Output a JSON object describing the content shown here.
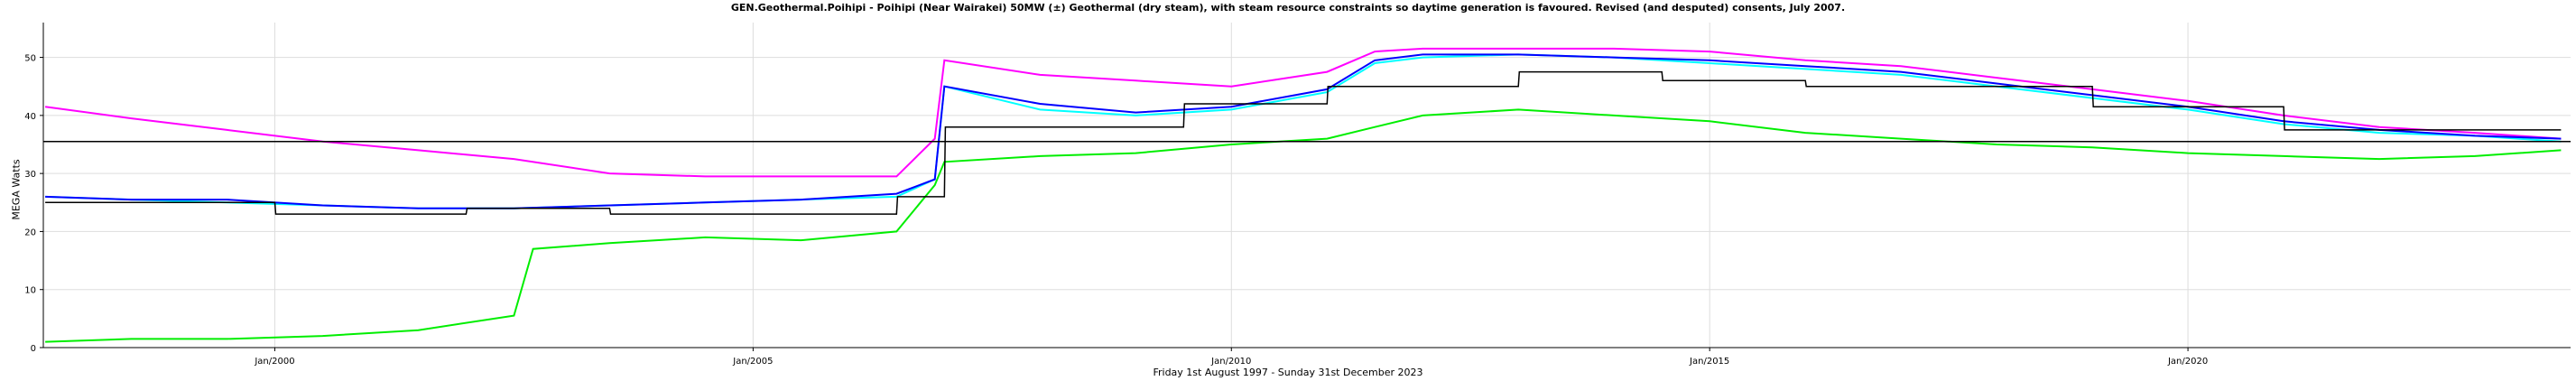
{
  "chart_data": {
    "type": "line",
    "title": "GEN.Geothermal.Poihipi - Poihipi (Near Wairakei) 50MW (±) Geothermal (dry steam), with steam resource constraints so daytime generation is favoured. Revised (and desputed) consents, July 2007.",
    "subtitle": "Friday 1st August 1997  -  Sunday 31st December 2023",
    "ylabel": "MEGA Watts",
    "xlabel": "",
    "xlim": [
      1997.58,
      2024.0
    ],
    "ylim": [
      0,
      56
    ],
    "yticks": [
      0,
      10,
      20,
      30,
      40,
      50
    ],
    "xticks": [
      {
        "value": 2000.0,
        "label": "Jan/2000"
      },
      {
        "value": 2005.0,
        "label": "Jan/2005"
      },
      {
        "value": 2010.0,
        "label": "Jan/2010"
      },
      {
        "value": 2015.0,
        "label": "Jan/2015"
      },
      {
        "value": 2020.0,
        "label": "Jan/2020"
      }
    ],
    "grid": true,
    "horizontal_reference": 35.5,
    "series": [
      {
        "color": "#ff00ff",
        "role": "max",
        "x": [
          1997.6,
          1998.5,
          1999.5,
          2000.5,
          2001.5,
          2002.5,
          2003.5,
          2004.5,
          2005.5,
          2006.5,
          2006.9,
          2007.0,
          2008.0,
          2009.0,
          2010.0,
          2011.0,
          2011.5,
          2012.0,
          2013.0,
          2014.0,
          2015.0,
          2016.0,
          2017.0,
          2018.0,
          2019.0,
          2020.0,
          2021.0,
          2022.0,
          2023.0,
          2023.9
        ],
        "values": [
          41.5,
          39.5,
          37.5,
          35.5,
          34.0,
          32.5,
          30.0,
          29.5,
          29.5,
          29.5,
          36.0,
          49.5,
          47.0,
          46.0,
          45.0,
          47.5,
          51.0,
          51.5,
          51.5,
          51.5,
          51.0,
          49.5,
          48.5,
          46.5,
          44.5,
          42.5,
          40.0,
          38.0,
          37.0,
          36.0
        ]
      },
      {
        "color": "#00ffff",
        "role": "mean-daily",
        "x": [
          1997.6,
          1998.5,
          1999.5,
          2000.5,
          2001.5,
          2002.5,
          2003.5,
          2004.5,
          2005.5,
          2006.5,
          2006.9,
          2007.0,
          2008.0,
          2009.0,
          2010.0,
          2011.0,
          2011.5,
          2012.0,
          2013.0,
          2014.0,
          2015.0,
          2016.0,
          2017.0,
          2018.0,
          2019.0,
          2020.0,
          2021.0,
          2022.0,
          2023.0,
          2023.9
        ],
        "values": [
          26.0,
          25.5,
          25.0,
          24.5,
          24.0,
          24.0,
          24.5,
          25.0,
          25.5,
          26.0,
          29.0,
          45.0,
          41.0,
          40.0,
          41.0,
          44.0,
          49.0,
          50.0,
          50.5,
          50.0,
          49.0,
          48.0,
          47.0,
          45.0,
          43.0,
          41.0,
          38.5,
          37.0,
          36.5,
          35.5
        ]
      },
      {
        "color": "#0000ff",
        "role": "mean",
        "x": [
          1997.6,
          1998.5,
          1999.5,
          2000.5,
          2001.5,
          2002.5,
          2003.5,
          2004.5,
          2005.5,
          2006.5,
          2006.9,
          2007.0,
          2008.0,
          2009.0,
          2010.0,
          2011.0,
          2011.5,
          2012.0,
          2013.0,
          2014.0,
          2015.0,
          2016.0,
          2017.0,
          2018.0,
          2019.0,
          2020.0,
          2021.0,
          2022.0,
          2023.0,
          2023.9
        ],
        "values": [
          26.0,
          25.5,
          25.5,
          24.5,
          24.0,
          24.0,
          24.5,
          25.0,
          25.5,
          26.5,
          29.0,
          45.0,
          42.0,
          40.5,
          41.5,
          44.5,
          49.5,
          50.5,
          50.5,
          50.0,
          49.5,
          48.5,
          47.5,
          45.5,
          43.5,
          41.5,
          39.0,
          37.5,
          36.5,
          36.0
        ]
      },
      {
        "color": "#00ee00",
        "role": "min",
        "x": [
          1997.6,
          1998.5,
          1999.5,
          2000.5,
          2001.5,
          2002.5,
          2002.7,
          2003.5,
          2004.5,
          2005.5,
          2006.5,
          2006.9,
          2007.0,
          2008.0,
          2009.0,
          2010.0,
          2011.0,
          2011.5,
          2012.0,
          2013.0,
          2014.0,
          2015.0,
          2016.0,
          2017.0,
          2018.0,
          2019.0,
          2020.0,
          2021.0,
          2022.0,
          2023.0,
          2023.9
        ],
        "values": [
          1.0,
          1.5,
          1.5,
          2.0,
          3.0,
          5.5,
          17.0,
          18.0,
          19.0,
          18.5,
          20.0,
          28.0,
          32.0,
          33.0,
          33.5,
          35.0,
          36.0,
          38.0,
          40.0,
          41.0,
          40.0,
          39.0,
          37.0,
          36.0,
          35.0,
          34.5,
          33.5,
          33.0,
          32.5,
          33.0,
          34.0
        ]
      },
      {
        "color": "#000000",
        "role": "monthly-average",
        "x": [
          1997.6,
          2000.0,
          2000.01,
          2002.0,
          2002.01,
          2003.5,
          2003.51,
          2006.5,
          2006.51,
          2007.0,
          2007.01,
          2009.5,
          2009.51,
          2011.0,
          2011.01,
          2013.0,
          2013.01,
          2014.5,
          2014.51,
          2016.0,
          2016.01,
          2019.0,
          2019.01,
          2021.0,
          2021.01,
          2023.9
        ],
        "values": [
          25.0,
          25.0,
          23.0,
          23.0,
          24.0,
          24.0,
          23.0,
          23.0,
          26.0,
          26.0,
          38.0,
          38.0,
          42.0,
          42.0,
          45.0,
          45.0,
          47.5,
          47.5,
          46.0,
          46.0,
          45.0,
          45.0,
          41.5,
          41.5,
          37.5,
          37.5
        ]
      }
    ]
  }
}
